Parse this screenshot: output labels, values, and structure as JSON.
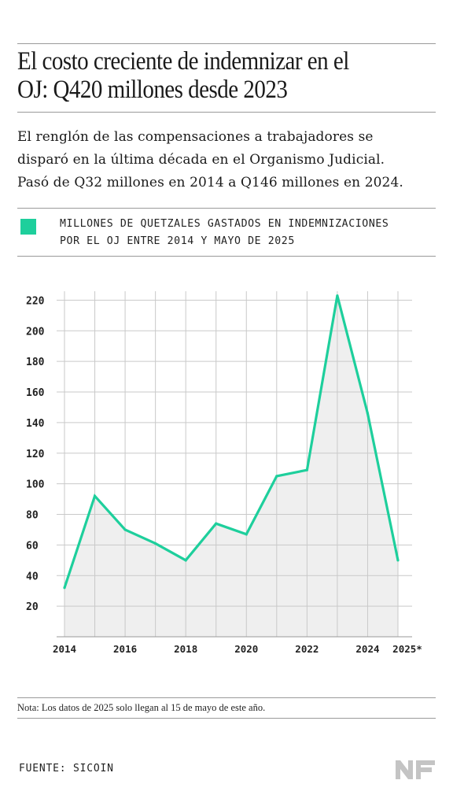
{
  "header": {
    "title_line1": "El costo creciente de indemnizar en el",
    "title_line2": "OJ: Q420 millones desde 2023",
    "subtitle_line1": "El renglón de las compensaciones a trabajadores se",
    "subtitle_line2": "disparó en la última década en el Organismo Judicial.",
    "subtitle_line3": "Pasó de Q32 millones en 2014 a Q146 millones en 2024."
  },
  "legend": {
    "line1": "MILLONES DE QUETZALES GASTADOS EN INDEMNIZACIONES",
    "line2": "POR EL OJ ENTRE 2014 Y MAYO DE 2025",
    "color": "#1ecf9c"
  },
  "chart_data": {
    "type": "area",
    "x": [
      2014,
      2015,
      2016,
      2017,
      2018,
      2019,
      2020,
      2021,
      2022,
      2023,
      2024,
      2025
    ],
    "series": [
      {
        "values": [
          32,
          92,
          70,
          61,
          50,
          74,
          67,
          105,
          109,
          223,
          146,
          50
        ]
      }
    ],
    "xtick_labels": [
      "2014",
      "2016",
      "2018",
      "2020",
      "2022",
      "2024",
      "2025*"
    ],
    "xtick_positions": [
      2014,
      2016,
      2018,
      2020,
      2022,
      2024,
      2025
    ],
    "yticks": [
      20,
      40,
      60,
      80,
      100,
      120,
      140,
      160,
      180,
      200,
      220
    ],
    "ylim": [
      0,
      230
    ],
    "xlim": [
      2014,
      2025
    ],
    "grid": true,
    "line_color": "#1ecf9c",
    "fill_color": "#efefef"
  },
  "footer": {
    "note": "Nota: Los datos de 2025 solo llegan al 15 de mayo de este año.",
    "source": "FUENTE: SICOIN",
    "logo_text": "NF"
  }
}
